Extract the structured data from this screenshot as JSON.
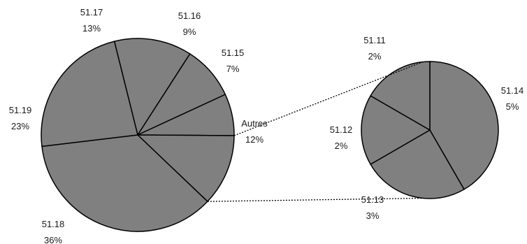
{
  "chart_data": {
    "type": "pie",
    "subtype": "pie-of-pie",
    "main_pie": [
      {
        "label": "51.17",
        "pct_text": "13%",
        "value": 13
      },
      {
        "label": "51.16",
        "pct_text": "9%",
        "value": 9
      },
      {
        "label": "51.15",
        "pct_text": "7%",
        "value": 7
      },
      {
        "label": "Autres",
        "pct_text": "12%",
        "value": 12
      },
      {
        "label": "51.18",
        "pct_text": "36%",
        "value": 36
      },
      {
        "label": "51.19",
        "pct_text": "23%",
        "value": 23
      }
    ],
    "secondary_pie": [
      {
        "label": "51.14",
        "pct_text": "5%",
        "value": 5
      },
      {
        "label": "51.13",
        "pct_text": "3%",
        "value": 3
      },
      {
        "label": "51.12",
        "pct_text": "2%",
        "value": 2
      },
      {
        "label": "51.11",
        "pct_text": "2%",
        "value": 2
      }
    ],
    "colors": {
      "slice_fill": "#808080",
      "slice_stroke": "#000000",
      "connector": "#000000"
    }
  }
}
